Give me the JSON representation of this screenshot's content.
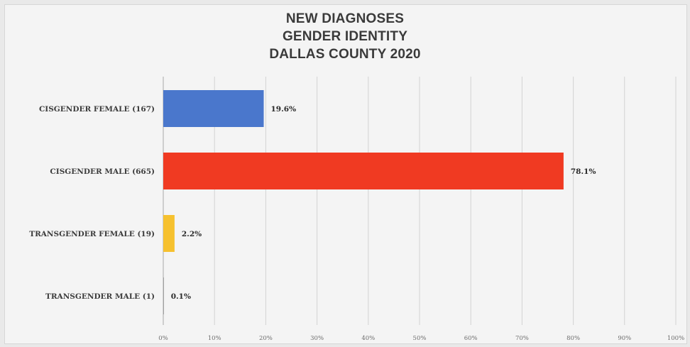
{
  "chart_data": {
    "type": "bar",
    "orientation": "horizontal",
    "title_lines": [
      "NEW DIAGNOSES",
      "GENDER IDENTITY",
      "DALLAS COUNTY 2020"
    ],
    "categories": [
      "CISGENDER FEMALE (167)",
      "CISGENDER MALE (665)",
      "TRANSGENDER FEMALE (19)",
      "TRANSGENDER MALE (1)"
    ],
    "values": [
      19.6,
      78.1,
      2.2,
      0.1
    ],
    "value_labels": [
      "19.6%",
      "78.1%",
      "2.2%",
      "0.1%"
    ],
    "bar_colors": [
      "#4a77cc",
      "#f03a22",
      "#f6c12f",
      "#7f7f7f"
    ],
    "xlim": [
      0,
      100
    ],
    "x_ticks": [
      "0%",
      "10%",
      "20%",
      "30%",
      "40%",
      "50%",
      "60%",
      "70%",
      "80%",
      "90%",
      "100%"
    ],
    "grid": true,
    "legend": "none"
  }
}
